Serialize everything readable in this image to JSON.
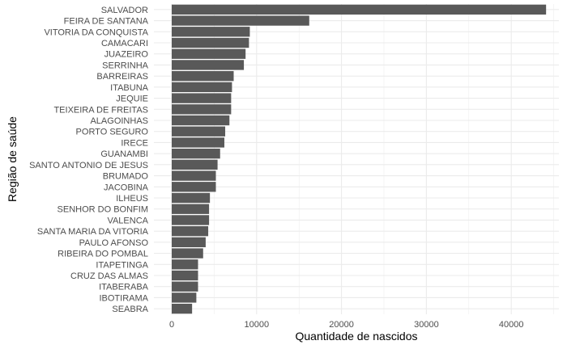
{
  "chart_data": {
    "type": "bar",
    "orientation": "horizontal",
    "title": "",
    "xlabel": "Quantidade de nascidos",
    "ylabel": "Região de saúde",
    "xlim": [
      0,
      45000
    ],
    "x_ticks": [
      0,
      10000,
      20000,
      30000,
      40000
    ],
    "x_tick_labels": [
      "0",
      "10000",
      "20000",
      "30000",
      "40000"
    ],
    "grid": true,
    "legend": "none",
    "bar_color": "#595959",
    "grid_color": "#ebebeb",
    "categories": [
      "SALVADOR",
      "FEIRA DE SANTANA",
      "VITORIA DA CONQUISTA",
      "CAMACARI",
      "JUAZEIRO",
      "SERRINHA",
      "BARREIRAS",
      "ITABUNA",
      "JEQUIE",
      "TEIXEIRA DE FREITAS",
      "ALAGOINHAS",
      "PORTO SEGURO",
      "IRECE",
      "GUANAMBI",
      "SANTO ANTONIO DE JESUS",
      "BRUMADO",
      "JACOBINA",
      "ILHEUS",
      "SENHOR DO BONFIM",
      "VALENCA",
      "SANTA MARIA DA VITORIA",
      "PAULO AFONSO",
      "RIBEIRA DO POMBAL",
      "ITAPETINGA",
      "CRUZ DAS ALMAS",
      "ITABERABA",
      "IBOTIRAMA",
      "SEABRA"
    ],
    "values": [
      44100,
      16200,
      9200,
      9100,
      8700,
      8500,
      7300,
      7100,
      7000,
      7000,
      6800,
      6300,
      6200,
      5700,
      5400,
      5200,
      5200,
      4500,
      4400,
      4400,
      4300,
      4000,
      3700,
      3100,
      3100,
      3100,
      2900,
      2400
    ]
  }
}
